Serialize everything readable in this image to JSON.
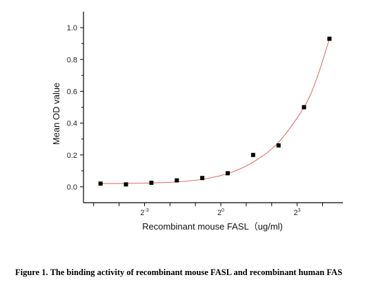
{
  "caption": "Figure 1. The binding activity of recombinant mouse FASL and recombinant human FAS",
  "chart_data": {
    "type": "scatter",
    "xlabel": "Recombinant mouse FASL（ug/ml)",
    "ylabel": "Mean OD value",
    "x_scale": "log2",
    "xlim": [
      -5.4,
      4.8
    ],
    "ylim": [
      -0.1,
      1.1
    ],
    "xticks": [
      {
        "value": -3,
        "base": "2",
        "exp": "-3"
      },
      {
        "value": 0,
        "base": "2",
        "exp": "0"
      },
      {
        "value": 3,
        "base": "2",
        "exp": "3"
      }
    ],
    "yticks": [
      {
        "value": 0.0,
        "label": "0.0"
      },
      {
        "value": 0.2,
        "label": "0.2"
      },
      {
        "value": 0.4,
        "label": "0.4"
      },
      {
        "value": 0.6,
        "label": "0.6"
      },
      {
        "value": 0.8,
        "label": "0.8"
      },
      {
        "value": 1.0,
        "label": "1.0"
      }
    ],
    "series": [
      {
        "marker": "square",
        "color": "#000000",
        "points": [
          {
            "x": -4.73,
            "y": 0.02
          },
          {
            "x": -3.73,
            "y": 0.015
          },
          {
            "x": -2.73,
            "y": 0.025
          },
          {
            "x": -1.73,
            "y": 0.04
          },
          {
            "x": -0.73,
            "y": 0.055
          },
          {
            "x": 0.27,
            "y": 0.085
          },
          {
            "x": 1.27,
            "y": 0.2
          },
          {
            "x": 2.27,
            "y": 0.26
          },
          {
            "x": 3.27,
            "y": 0.5
          },
          {
            "x": 4.27,
            "y": 0.93
          }
        ]
      }
    ],
    "fit_curve": {
      "color": "#e06060",
      "points": [
        {
          "x": -4.73,
          "y": 0.02
        },
        {
          "x": -3.73,
          "y": 0.021
        },
        {
          "x": -2.73,
          "y": 0.024
        },
        {
          "x": -1.73,
          "y": 0.031
        },
        {
          "x": -0.73,
          "y": 0.047
        },
        {
          "x": 0.27,
          "y": 0.083
        },
        {
          "x": 1.27,
          "y": 0.155
        },
        {
          "x": 2.27,
          "y": 0.28
        },
        {
          "x": 3.27,
          "y": 0.5
        },
        {
          "x": 3.77,
          "y": 0.68
        },
        {
          "x": 4.27,
          "y": 0.93
        }
      ]
    }
  }
}
